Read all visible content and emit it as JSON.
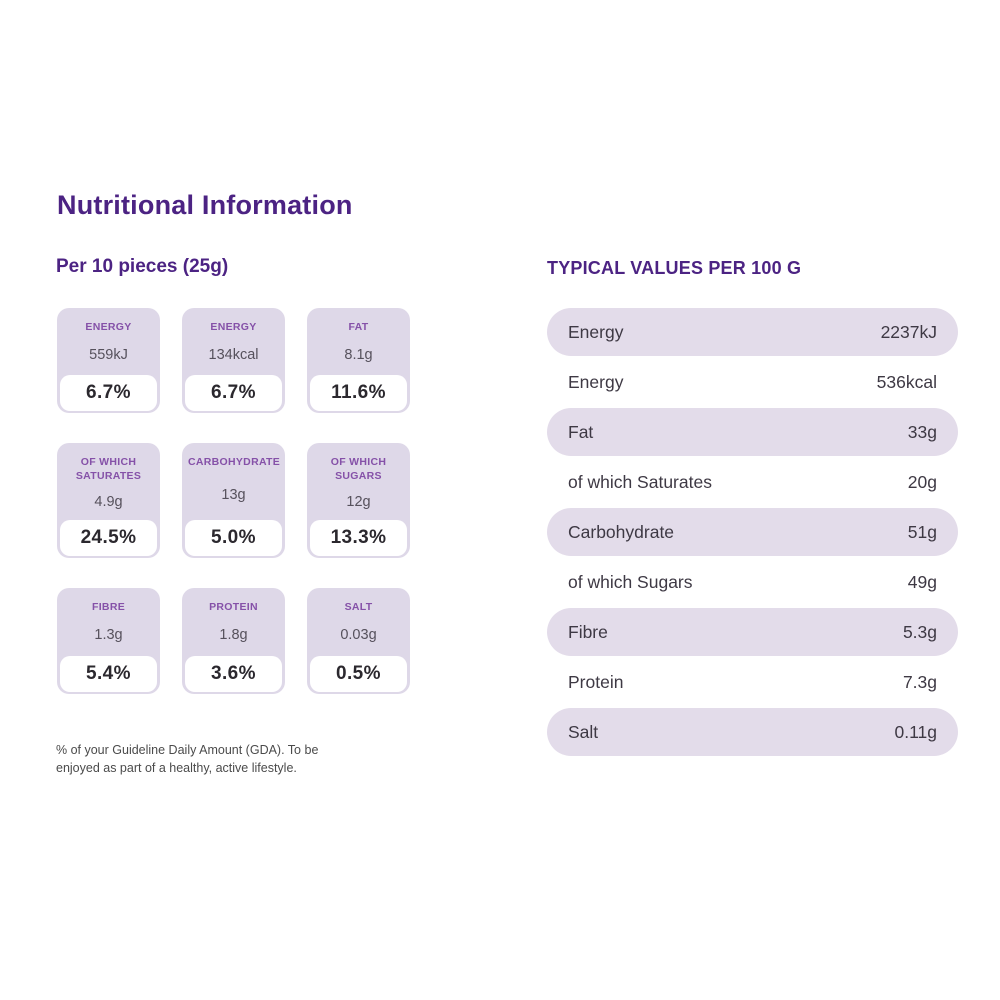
{
  "page_title": "Nutritional Information",
  "colors": {
    "heading_purple": "#4c2383",
    "card_label_purple": "#8551a8",
    "card_bg": "#ded8e8",
    "table_row_bg": "#e3dcea",
    "value_gray": "#56515c",
    "percent_dark": "#2b282e"
  },
  "left": {
    "heading": "Per 10 pieces (25g)",
    "cards": [
      {
        "label": "ENERGY",
        "value": "559kJ",
        "percent": "6.7%"
      },
      {
        "label": "ENERGY",
        "value": "134kcal",
        "percent": "6.7%"
      },
      {
        "label": "FAT",
        "value": "8.1g",
        "percent": "11.6%"
      },
      {
        "label": "OF WHICH SATURATES",
        "value": "4.9g",
        "percent": "24.5%"
      },
      {
        "label": "CARBOHYDRATE",
        "value": "13g",
        "percent": "5.0%"
      },
      {
        "label": "OF WHICH SUGARS",
        "value": "12g",
        "percent": "13.3%"
      },
      {
        "label": "FIBRE",
        "value": "1.3g",
        "percent": "5.4%"
      },
      {
        "label": "PROTEIN",
        "value": "1.8g",
        "percent": "3.6%"
      },
      {
        "label": "SALT",
        "value": "0.03g",
        "percent": "0.5%"
      }
    ],
    "footnote": "% of your Guideline Daily Amount (GDA). To be enjoyed as part of a healthy, active lifestyle."
  },
  "right": {
    "heading": "TYPICAL VALUES PER 100 G",
    "rows": [
      {
        "label": "Energy",
        "value": "2237kJ"
      },
      {
        "label": "Energy",
        "value": "536kcal"
      },
      {
        "label": "Fat",
        "value": "33g"
      },
      {
        "label": "of which Saturates",
        "value": "20g"
      },
      {
        "label": "Carbohydrate",
        "value": "51g"
      },
      {
        "label": "of which Sugars",
        "value": "49g"
      },
      {
        "label": "Fibre",
        "value": "5.3g"
      },
      {
        "label": "Protein",
        "value": "7.3g"
      },
      {
        "label": "Salt",
        "value": "0.11g"
      }
    ]
  }
}
